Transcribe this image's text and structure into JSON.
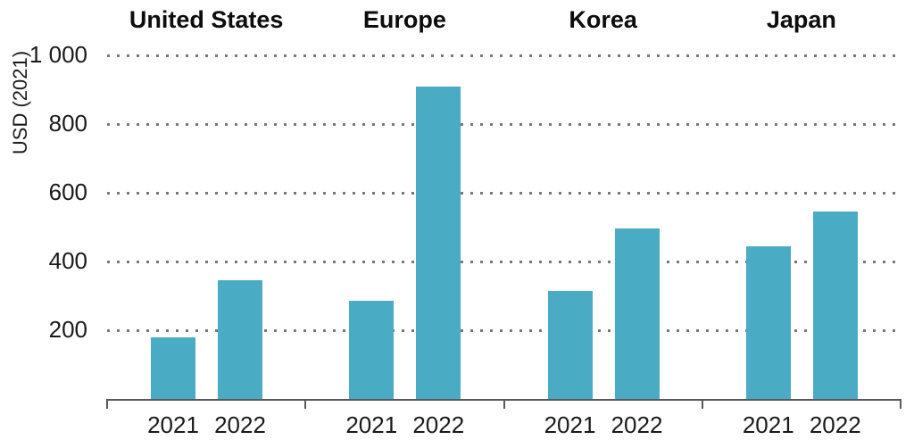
{
  "chart_data": {
    "type": "bar",
    "title": "",
    "ylabel": "USD (2021)",
    "xlabel": "",
    "categories": [
      "United States",
      "Europe",
      "Korea",
      "Japan"
    ],
    "series": [
      {
        "name": "2021",
        "values": [
          180,
          285,
          315,
          445
        ]
      },
      {
        "name": "2022",
        "values": [
          345,
          910,
          495,
          545
        ]
      }
    ],
    "ylim": [
      0,
      1000
    ],
    "yticks": [
      200,
      400,
      600,
      800,
      1000
    ],
    "ytick_labels": [
      "200",
      "400",
      "600",
      "800",
      "1 000"
    ],
    "grid": "dotted horizontal lines at each y tick",
    "legend": "none",
    "colors": {
      "bar": "#4aabc5",
      "grid_dot": "#787878",
      "axis": "#595959",
      "text": "#1a1a1a"
    }
  }
}
